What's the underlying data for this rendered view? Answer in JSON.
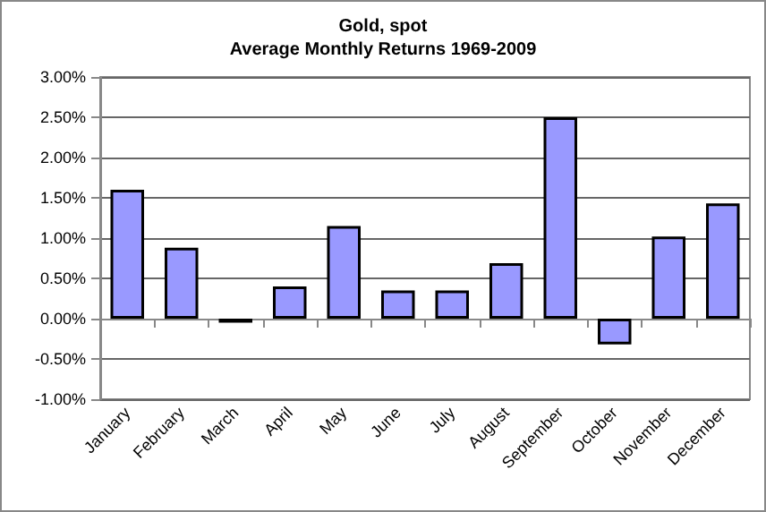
{
  "chart_data": {
    "type": "bar",
    "title": "Gold, spot",
    "subtitle": "Average Monthly Returns 1969-2009",
    "categories": [
      "January",
      "February",
      "March",
      "April",
      "May",
      "June",
      "July",
      "August",
      "September",
      "October",
      "November",
      "December"
    ],
    "values": [
      1.6,
      0.88,
      -0.05,
      0.4,
      1.15,
      0.35,
      0.35,
      0.69,
      2.5,
      -0.32,
      1.02,
      1.43
    ],
    "color": "#9999ff",
    "ylim": [
      -1,
      3
    ],
    "yticks": [
      {
        "value": -1,
        "label": "-1.00%"
      },
      {
        "value": -0.5,
        "label": "-0.50%"
      },
      {
        "value": 0,
        "label": "0.00%"
      },
      {
        "value": 0.5,
        "label": "0.50%"
      },
      {
        "value": 1,
        "label": "1.00%"
      },
      {
        "value": 1.5,
        "label": "1.50%"
      },
      {
        "value": 2,
        "label": "2.00%"
      },
      {
        "value": 2.5,
        "label": "2.50%"
      },
      {
        "value": 3,
        "label": "3.00%"
      }
    ],
    "grid": "y"
  }
}
